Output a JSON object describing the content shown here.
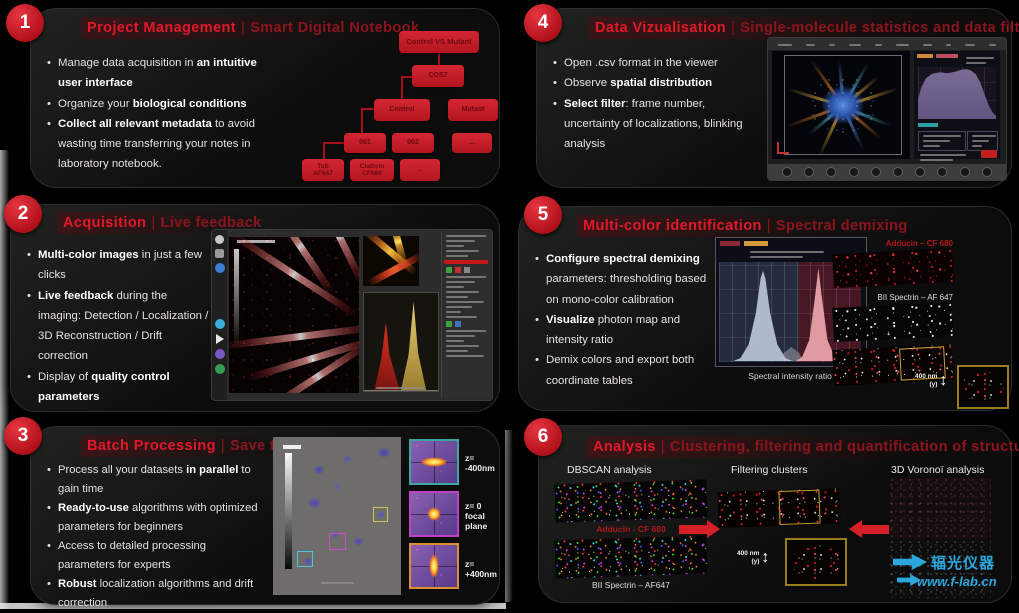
{
  "colors": {
    "accent": "#d6202b",
    "title_red": "#e2182a",
    "subtitle_red": "#8e141f",
    "yellow_box": "#c8a030"
  },
  "watermark": {
    "brand": "辐光仪器",
    "url": "www.f-lab.cn"
  },
  "p1": {
    "num": "1",
    "title": "Project Management",
    "sep": "|",
    "subtitle": "Smart Digital Notebook",
    "b1_pre": "Manage data acquisition in ",
    "b1_bold": "an intuitive user interface",
    "b2_pre": "Organize your ",
    "b2_bold": "biological conditions",
    "b3_bold": "Collect all relevant metadata",
    "b3_post": " to avoid wasting time transferring your notes in laboratory notebook.",
    "tree": {
      "root": "Control VS Mutant",
      "cos7": "COS7",
      "control": "Control",
      "mutant": "Mutant",
      "n001": "001",
      "n002": "002",
      "dots1": "...",
      "leaf1": "Tub\nAF647",
      "leaf2": "Clathrin\nCF680",
      "dots2": "..."
    }
  },
  "p2": {
    "num": "2",
    "title": "Acquisition",
    "sep": "|",
    "subtitle": "Live feedback",
    "b1_bold": "Multi-color images",
    "b1_post": " in just a few clicks",
    "b2_bold": "Live feedback",
    "b2_post": " during the imaging: Detection / Localization / 3D Reconstruction / Drift correction",
    "b3_pre": "Display of ",
    "b3_bold": "quality control parameters"
  },
  "p3": {
    "num": "3",
    "title": "Batch Processing",
    "sep": "|",
    "subtitle": "Save time",
    "b1_pre": "Process all your datasets ",
    "b1_bold": "in parallel",
    "b1_post": " to gain time",
    "b2_bold": "Ready-to-use",
    "b2_post": " algorithms with optimized parameters for beginners",
    "b3_pre": "Access to detailed processing parameters for experts",
    "b4_bold": "Robust",
    "b4_post": " localization algorithms and drift correction",
    "psf": {
      "z1": "z= -400nm",
      "z2": "z= 0",
      "z2b": "focal plane",
      "z3": "z= +400nm"
    }
  },
  "p4": {
    "num": "4",
    "title": "Data Vizualisation",
    "sep": "|",
    "subtitle": "Single-molecule statistics and data filtering",
    "b1_pre": "Open .csv format in the viewer",
    "b2_pre": "Observe ",
    "b2_bold": "spatial distribution",
    "b3_bold": "Select filter",
    "b3_post": ": frame number, uncertainty of localizations, blinking analysis"
  },
  "p5": {
    "num": "5",
    "title": "Multi-color identification",
    "sep": "|",
    "subtitle": "Spectral demixing",
    "b1_bold": "Configure spectral demixing",
    "b1_post": " parameters: thresholding based on mono-color calibration",
    "b2_bold": "Visualize",
    "b2_post": " photon map and intensity ratio",
    "b3_pre": "Demix colors and export both coordinate tables",
    "caption": "Spectral intensity ratio",
    "label_red": "Adducin – CF 680",
    "label_white": "BII Spectrin – AF 647",
    "scale": "400 nm",
    "scale_axis": "(y)"
  },
  "p6": {
    "num": "6",
    "title": "Analysis",
    "sep": "|",
    "subtitle": "Clustering, filtering and quantification of structure",
    "col1": "DBSCAN analysis",
    "col2": "Filtering clusters",
    "col3": "3D Voronoï analysis",
    "label_red": "Adducin - CF 680",
    "label_white": "BII Spectrin – AF647",
    "scale": "400 nm",
    "scale_axis": "(y)"
  }
}
